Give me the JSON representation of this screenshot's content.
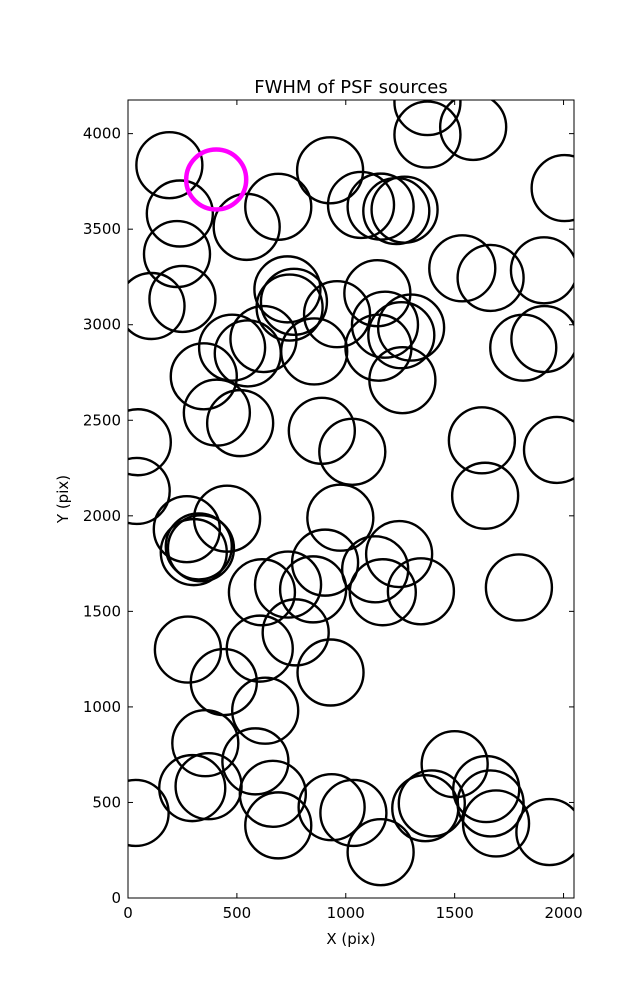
{
  "chart_data": {
    "type": "scatter",
    "title": "FWHM of PSF sources",
    "xlabel": "X (pix)",
    "ylabel": "Y (pix)",
    "xlim": [
      0,
      2048
    ],
    "ylim": [
      0,
      4176
    ],
    "xticks": [
      0,
      500,
      1000,
      1500,
      2000
    ],
    "xtick_labels": [
      "0",
      "500",
      "1000",
      "1500",
      "2000"
    ],
    "yticks": [
      0,
      500,
      1000,
      1500,
      2000,
      2500,
      3000,
      3500,
      4000
    ],
    "ytick_labels": [
      "0",
      "500",
      "1000",
      "1500",
      "2000",
      "2500",
      "3000",
      "3500",
      "4000"
    ],
    "grid": false,
    "marker": "open circle",
    "marker_color": "#000000",
    "highlight_color": "#ff00ff",
    "series": [
      {
        "points": [
          [
            190,
            3835
          ],
          [
            238,
            3582
          ],
          [
            225,
            3370
          ],
          [
            250,
            3135
          ],
          [
            108,
            3098
          ],
          [
            545,
            3512
          ],
          [
            690,
            3617
          ],
          [
            928,
            3808
          ],
          [
            1070,
            3627
          ],
          [
            1160,
            3618
          ],
          [
            1232,
            3595
          ],
          [
            1270,
            3602
          ],
          [
            1375,
            4165
          ],
          [
            1375,
            3995
          ],
          [
            1585,
            4035
          ],
          [
            2005,
            3715
          ],
          [
            1535,
            3295
          ],
          [
            1665,
            3245
          ],
          [
            1910,
            3285
          ],
          [
            1912,
            2925
          ],
          [
            1815,
            2880
          ],
          [
            732,
            3185
          ],
          [
            762,
            3120
          ],
          [
            742,
            3090
          ],
          [
            960,
            3055
          ],
          [
            1145,
            3165
          ],
          [
            1180,
            3000
          ],
          [
            1255,
            2945
          ],
          [
            1300,
            2985
          ],
          [
            1260,
            2710
          ],
          [
            855,
            2860
          ],
          [
            1150,
            2880
          ],
          [
            478,
            2880
          ],
          [
            550,
            2850
          ],
          [
            622,
            2925
          ],
          [
            348,
            2730
          ],
          [
            408,
            2540
          ],
          [
            515,
            2485
          ],
          [
            890,
            2445
          ],
          [
            1030,
            2335
          ],
          [
            45,
            2385
          ],
          [
            40,
            2130
          ],
          [
            1625,
            2395
          ],
          [
            1640,
            2105
          ],
          [
            1970,
            2345
          ],
          [
            270,
            1930
          ],
          [
            455,
            1985
          ],
          [
            975,
            1990
          ],
          [
            302,
            1810
          ],
          [
            325,
            1840
          ],
          [
            335,
            1830
          ],
          [
            615,
            1600
          ],
          [
            735,
            1640
          ],
          [
            850,
            1615
          ],
          [
            905,
            1755
          ],
          [
            1135,
            1720
          ],
          [
            1170,
            1600
          ],
          [
            1245,
            1800
          ],
          [
            1345,
            1605
          ],
          [
            1795,
            1625
          ],
          [
            275,
            1300
          ],
          [
            440,
            1130
          ],
          [
            605,
            1305
          ],
          [
            770,
            1390
          ],
          [
            930,
            1180
          ],
          [
            630,
            980
          ],
          [
            355,
            810
          ],
          [
            585,
            715
          ],
          [
            295,
            575
          ],
          [
            370,
            585
          ],
          [
            665,
            545
          ],
          [
            690,
            380
          ],
          [
            35,
            445
          ],
          [
            935,
            475
          ],
          [
            1035,
            445
          ],
          [
            1160,
            240
          ],
          [
            1365,
            470
          ],
          [
            1395,
            495
          ],
          [
            1500,
            700
          ],
          [
            1645,
            570
          ],
          [
            1665,
            495
          ],
          [
            1690,
            390
          ],
          [
            1935,
            345
          ]
        ]
      }
    ],
    "highlight_points": [
      [
        405,
        3760
      ]
    ]
  }
}
